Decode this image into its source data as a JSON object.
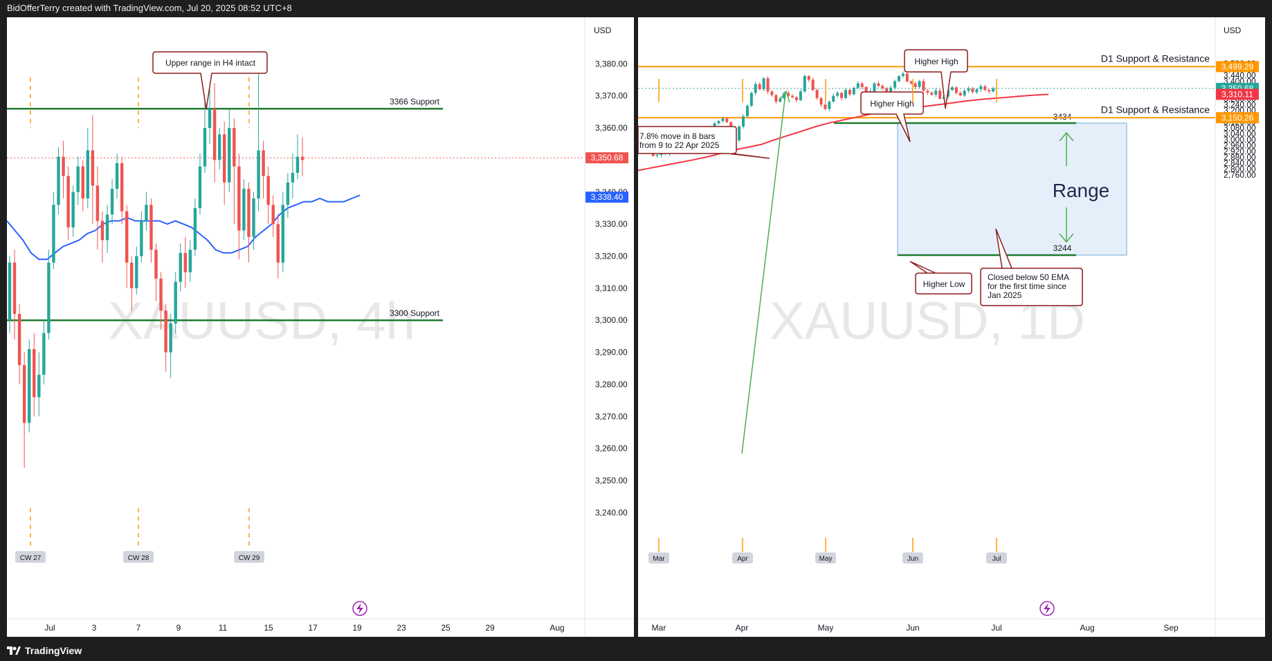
{
  "header": {
    "credit": "BidOfferTerry created with TradingView.com, Jul 20, 2025 08:52 UTC+8"
  },
  "footer": {
    "brand": "TradingView"
  },
  "colors": {
    "up": "#26a69a",
    "down": "#ef5350",
    "ema4h": "#2962ff",
    "ema1d": "#f23645",
    "support": "#1f7a2e",
    "resistance": "#ff9800",
    "range_fill": "#dce9f8",
    "range_border": "#6fa8dc"
  },
  "chart_data": [
    {
      "type": "candlestick",
      "symbol": "XAUUSD",
      "timeframe": "4h",
      "watermark": "XAUUSD, 4h",
      "currency": "USD",
      "ylim": [
        3236,
        3388
      ],
      "y_ticks": [
        3380,
        3370,
        3360,
        3350,
        3340,
        3330,
        3320,
        3310,
        3300,
        3290,
        3280,
        3270,
        3260,
        3250,
        3240
      ],
      "y_tick_labels": [
        "3,380.00",
        "3,370.00",
        "3,360.00",
        "3,350.00",
        "3,340.00",
        "3,330.00",
        "3,320.00",
        "3,310.00",
        "3,300.00",
        "3,290.00",
        "3,280.00",
        "3,270.00",
        "3,260.00",
        "3,250.00",
        "3,240.00"
      ],
      "x_tick_labels": [
        "Jul",
        "3",
        "7",
        "9",
        "11",
        "15",
        "17",
        "19",
        "23",
        "25",
        "29",
        "Aug"
      ],
      "price_labels": [
        {
          "label": "3,350.68",
          "value": 3350.68,
          "color": "#ef5350"
        },
        {
          "label": "3,338.40",
          "value": 3338.4,
          "color": "#2962ff"
        }
      ],
      "levels": [
        {
          "name": "3366 Support",
          "value": 3366
        },
        {
          "name": "3300 Support",
          "value": 3300
        }
      ],
      "week_labels": [
        "CW 27",
        "CW 28",
        "CW 29"
      ],
      "annotations": [
        {
          "text": "Upper range in H4 intact"
        }
      ],
      "ema_points": [
        3331,
        3328,
        3325,
        3321,
        3319,
        3319,
        3321,
        3323,
        3324,
        3325,
        3327,
        3328,
        3330,
        3331,
        3331,
        3332,
        3331,
        3331,
        3331,
        3331,
        3330,
        3331,
        3330,
        3329,
        3327,
        3325,
        3322,
        3321,
        3321,
        3322,
        3323,
        3326,
        3328,
        3330,
        3333,
        3335,
        3336,
        3337,
        3337,
        3338,
        3337,
        3337,
        3337,
        3338,
        3339
      ],
      "candles": [
        [
          3300,
          3318,
          3296,
          3320
        ],
        [
          3318,
          3302,
          3294,
          3322
        ],
        [
          3302,
          3286,
          3280,
          3305
        ],
        [
          3286,
          3268,
          3254,
          3290
        ],
        [
          3268,
          3291,
          3265,
          3294
        ],
        [
          3291,
          3276,
          3270,
          3296
        ],
        [
          3276,
          3283,
          3270,
          3290
        ],
        [
          3283,
          3296,
          3280,
          3300
        ],
        [
          3296,
          3318,
          3294,
          3322
        ],
        [
          3318,
          3336,
          3316,
          3340
        ],
        [
          3336,
          3351,
          3333,
          3354
        ],
        [
          3351,
          3345,
          3338,
          3356
        ],
        [
          3345,
          3329,
          3325,
          3348
        ],
        [
          3329,
          3340,
          3326,
          3342
        ],
        [
          3340,
          3348,
          3336,
          3351
        ],
        [
          3348,
          3338,
          3334,
          3350
        ],
        [
          3338,
          3353,
          3335,
          3360
        ],
        [
          3353,
          3342,
          3330,
          3364
        ],
        [
          3342,
          3331,
          3322,
          3348
        ],
        [
          3331,
          3325,
          3318,
          3334
        ],
        [
          3325,
          3333,
          3321,
          3336
        ],
        [
          3333,
          3341,
          3330,
          3344
        ],
        [
          3341,
          3349,
          3338,
          3352
        ],
        [
          3349,
          3334,
          3330,
          3351
        ],
        [
          3334,
          3318,
          3310,
          3336
        ],
        [
          3318,
          3310,
          3303,
          3320
        ],
        [
          3310,
          3320,
          3308,
          3323
        ],
        [
          3320,
          3331,
          3318,
          3334
        ],
        [
          3331,
          3336,
          3328,
          3340
        ],
        [
          3336,
          3322,
          3318,
          3338
        ],
        [
          3322,
          3313,
          3306,
          3324
        ],
        [
          3313,
          3303,
          3297,
          3315
        ],
        [
          3303,
          3290,
          3284,
          3305
        ],
        [
          3290,
          3299,
          3282,
          3302
        ],
        [
          3299,
          3312,
          3296,
          3315
        ],
        [
          3312,
          3321,
          3309,
          3324
        ],
        [
          3321,
          3315,
          3310,
          3326
        ],
        [
          3315,
          3322,
          3312,
          3325
        ],
        [
          3322,
          3335,
          3320,
          3338
        ],
        [
          3335,
          3348,
          3333,
          3352
        ],
        [
          3348,
          3360,
          3346,
          3370
        ],
        [
          3360,
          3366,
          3355,
          3372
        ],
        [
          3366,
          3350,
          3343,
          3374
        ],
        [
          3350,
          3358,
          3347,
          3360
        ],
        [
          3358,
          3343,
          3336,
          3362
        ],
        [
          3343,
          3360,
          3340,
          3366
        ],
        [
          3360,
          3348,
          3330,
          3363
        ],
        [
          3348,
          3328,
          3319,
          3352
        ],
        [
          3328,
          3341,
          3325,
          3344
        ],
        [
          3341,
          3326,
          3318,
          3343
        ],
        [
          3326,
          3338,
          3322,
          3340
        ],
        [
          3338,
          3353,
          3334,
          3378
        ],
        [
          3353,
          3345,
          3338,
          3356
        ],
        [
          3345,
          3336,
          3330,
          3348
        ],
        [
          3336,
          3330,
          3326,
          3339
        ],
        [
          3330,
          3318,
          3313,
          3333
        ],
        [
          3318,
          3336,
          3315,
          3340
        ],
        [
          3336,
          3343,
          3332,
          3346
        ],
        [
          3343,
          3346,
          3338,
          3352
        ],
        [
          3346,
          3351,
          3344,
          3358
        ],
        [
          3351,
          3350,
          3345,
          3357
        ]
      ]
    },
    {
      "type": "candlestick",
      "symbol": "XAUUSD",
      "timeframe": "1D",
      "watermark": "XAUUSD, 1D",
      "currency": "USD",
      "ylim": [
        2720,
        3560
      ],
      "y_ticks": [
        3520,
        3480,
        3440,
        3400,
        3360,
        3320,
        3280,
        3240,
        3200,
        3160,
        3120,
        3080,
        3040,
        3000,
        2960,
        2920,
        2880,
        2840,
        2800,
        2760
      ],
      "y_tick_labels": [
        "3,520.00",
        "3,480.00",
        "3,440.00",
        "3,400.00",
        "3,360.00",
        "3,320.00",
        "3,280.00",
        "3,240.00",
        "3,200.00",
        "3,160.00",
        "3,120.00",
        "3,080.00",
        "3,040.00",
        "3,000.00",
        "2,960.00",
        "2,920.00",
        "2,880.00",
        "2,840.00",
        "2,800.00",
        "2,760.00"
      ],
      "x_tick_labels": [
        "Mar",
        "Apr",
        "May",
        "Jun",
        "Jul",
        "Aug",
        "Sep"
      ],
      "month_markers": [
        "Mar",
        "Apr",
        "May",
        "Jun",
        "Jul"
      ],
      "price_labels": [
        {
          "label": "3,499.29",
          "value": 3499.29,
          "color": "#ff9800"
        },
        {
          "label": "3,350.68",
          "value": 3350.68,
          "color": "#26a69a"
        },
        {
          "label": "3,310.11",
          "value": 3310.11,
          "color": "#f23645"
        },
        {
          "label": "3,150.26",
          "value": 3150.26,
          "color": "#ff9800"
        }
      ],
      "levels": [
        {
          "name": "D1 Support & Resistance",
          "value": 3499.29
        },
        {
          "name": "D1 Support & Resistance",
          "value": 3150.26
        }
      ],
      "range_box": {
        "label": "Range",
        "top": 3434,
        "bottom": 3244,
        "top_label": "3434",
        "bottom_label": "3244"
      },
      "annotations": [
        {
          "text": "Higher High"
        },
        {
          "text": "Higher High"
        },
        {
          "text": "Higher Low"
        },
        {
          "text": "Closed below 50 EMA\nfor the first time since\nJan 2025"
        },
        {
          "text": "7.8% move in 8 bars\nfrom 9 to 22 Apr 2025"
        }
      ],
      "ema_points": [
        2790,
        2808,
        2826,
        2844,
        2862,
        2882,
        2905,
        2930,
        2948,
        2968,
        3000,
        3030,
        3060,
        3090,
        3115,
        3135,
        3155,
        3175,
        3190,
        3203,
        3215,
        3228,
        3240,
        3252,
        3265,
        3275,
        3283,
        3290,
        3298,
        3305,
        3310
      ],
      "closes": [
        2948,
        2935,
        2918,
        2890,
        2896,
        2914,
        2905,
        2922,
        2930,
        2918,
        2950,
        2988,
        2998,
        3014,
        3040,
        3025,
        3052,
        3080,
        3112,
        3128,
        3145,
        3120,
        3060,
        2995,
        3090,
        3160,
        3232,
        3320,
        3380,
        3345,
        3420,
        3330,
        3305,
        3260,
        3282,
        3320,
        3300,
        3290,
        3270,
        3330,
        3435,
        3410,
        3340,
        3285,
        3240,
        3210,
        3260,
        3300,
        3320,
        3285,
        3340,
        3310,
        3355,
        3385,
        3360,
        3325,
        3330,
        3385,
        3368,
        3352,
        3330,
        3356,
        3400,
        3435,
        3452,
        3398,
        3385,
        3360,
        3400,
        3335,
        3322,
        3308,
        3335,
        3280,
        3295,
        3340,
        3358,
        3320,
        3302,
        3335,
        3350,
        3325,
        3345,
        3365,
        3340,
        3330,
        3350
      ]
    }
  ]
}
